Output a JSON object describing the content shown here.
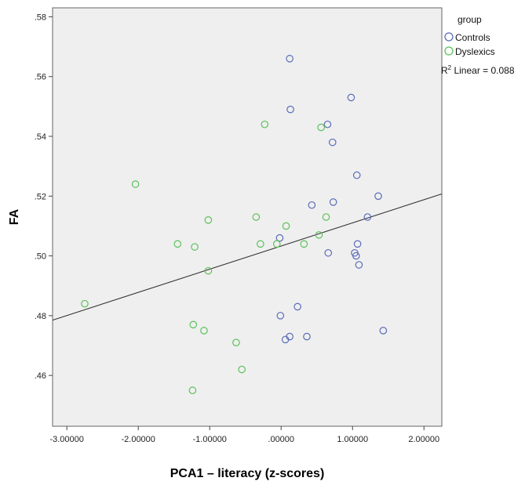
{
  "chart_data": {
    "type": "scatter",
    "xlabel": "PCA1 – literacy (z-scores)",
    "ylabel": "FA",
    "xlim": [
      -3.2,
      2.25
    ],
    "ylim": [
      0.443,
      0.583
    ],
    "x_ticks": [
      -3,
      -2,
      -1,
      0,
      1,
      2
    ],
    "x_tick_labels": [
      "-3.00000",
      "-2.00000",
      "-1.00000",
      ".00000",
      "1.00000",
      "2.00000"
    ],
    "y_ticks": [
      0.46,
      0.48,
      0.5,
      0.52,
      0.54,
      0.56,
      0.58
    ],
    "y_tick_labels": [
      ".46",
      ".48",
      ".50",
      ".52",
      ".54",
      ".56",
      ".58"
    ],
    "grid": false,
    "legend": {
      "title": "group",
      "placement": "top-right outside",
      "fit_label_prefix": "R",
      "fit_label_sup": "2",
      "fit_label_suffix": " Linear = 0.088"
    },
    "series": [
      {
        "name": "Controls",
        "color": "#5a6cb8",
        "points": [
          [
            0.12,
            0.566
          ],
          [
            0.13,
            0.549
          ],
          [
            0.98,
            0.553
          ],
          [
            0.65,
            0.544
          ],
          [
            0.72,
            0.538
          ],
          [
            1.06,
            0.527
          ],
          [
            1.36,
            0.52
          ],
          [
            0.73,
            0.518
          ],
          [
            0.43,
            0.517
          ],
          [
            1.21,
            0.513
          ],
          [
            -0.02,
            0.506
          ],
          [
            1.07,
            0.504
          ],
          [
            0.66,
            0.501
          ],
          [
            1.03,
            0.501
          ],
          [
            1.05,
            0.5
          ],
          [
            1.09,
            0.497
          ],
          [
            0.23,
            0.483
          ],
          [
            -0.01,
            0.48
          ],
          [
            1.43,
            0.475
          ],
          [
            0.36,
            0.473
          ],
          [
            0.12,
            0.473
          ],
          [
            0.06,
            0.472
          ]
        ]
      },
      {
        "name": "Dyslexics",
        "color": "#5cc05a",
        "points": [
          [
            -0.23,
            0.544
          ],
          [
            0.56,
            0.543
          ],
          [
            -2.04,
            0.524
          ],
          [
            -1.02,
            0.512
          ],
          [
            -0.35,
            0.513
          ],
          [
            0.63,
            0.513
          ],
          [
            0.07,
            0.51
          ],
          [
            0.53,
            0.507
          ],
          [
            -1.45,
            0.504
          ],
          [
            -1.21,
            0.503
          ],
          [
            -0.29,
            0.504
          ],
          [
            -0.06,
            0.504
          ],
          [
            0.32,
            0.504
          ],
          [
            -1.02,
            0.495
          ],
          [
            -2.75,
            0.484
          ],
          [
            -1.23,
            0.477
          ],
          [
            -1.08,
            0.475
          ],
          [
            -0.63,
            0.471
          ],
          [
            -0.55,
            0.462
          ],
          [
            -1.24,
            0.455
          ]
        ]
      }
    ],
    "fit_line": {
      "type": "linear",
      "color": "#333333",
      "intercept": 0.5033,
      "slope": 0.00775,
      "r2": 0.088
    }
  }
}
